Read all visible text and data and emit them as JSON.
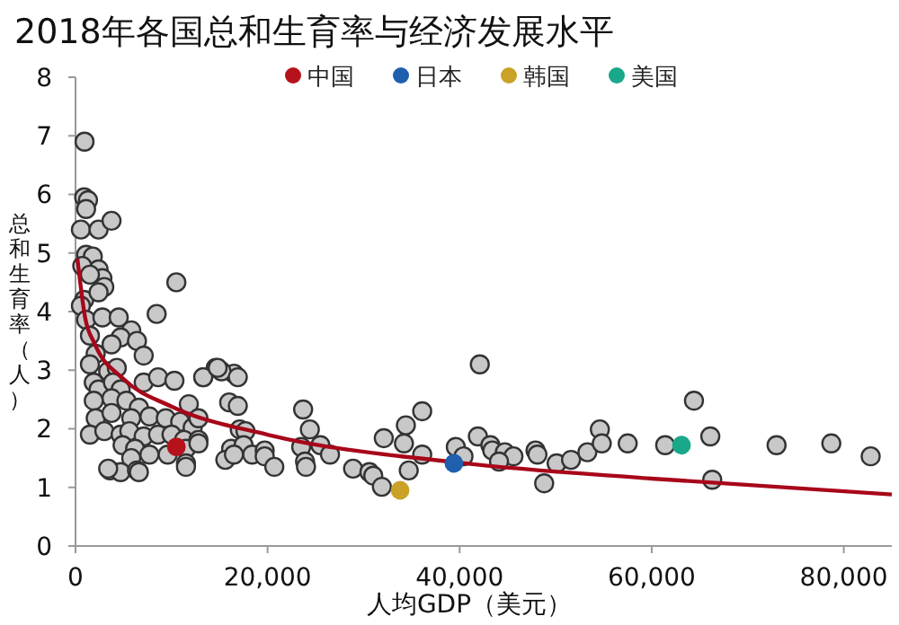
{
  "chart_data": {
    "type": "scatter",
    "title": "2018年各国总和生育率与经济发展水平",
    "xlabel": "人均GDP（美元）",
    "ylabel": "总和生育率（人）",
    "xlim": [
      0,
      85000
    ],
    "xticks": [
      {
        "value": 0,
        "label": "0"
      },
      {
        "value": 20000,
        "label": "20,000"
      },
      {
        "value": 40000,
        "label": "40,000"
      },
      {
        "value": 60000,
        "label": "60,000"
      },
      {
        "value": 80000,
        "label": "80,000"
      }
    ],
    "ylim": [
      0,
      8
    ],
    "yticks": [
      0,
      1,
      2,
      3,
      4,
      5,
      6,
      7,
      8
    ],
    "grid": false,
    "legend": "top",
    "marker": "circle",
    "series": [
      {
        "color": "#c8c8c8",
        "x": [
          940,
          900,
          1300,
          1100,
          560,
          2400,
          3750,
          1100,
          1800,
          700,
          10500,
          2400,
          2800,
          3000,
          1500,
          900,
          2400,
          560,
          8450,
          1100,
          2800,
          4500,
          5800,
          4700,
          6400,
          7100,
          3750,
          1500,
          2100,
          1500,
          3400,
          4300,
          1900,
          2400,
          3900,
          4700,
          7100,
          8600,
          10300,
          13300,
          14600,
          16500,
          1900,
          3750,
          5300,
          6600,
          2100,
          3750,
          5800,
          7700,
          9400,
          10900,
          11800,
          12200,
          1500,
          3000,
          4700,
          5600,
          7100,
          8600,
          10000,
          11300,
          12800,
          4900,
          6200,
          7700,
          5800,
          11500,
          9600,
          11500,
          3600,
          4700,
          6400,
          15200,
          3400,
          6600,
          11500,
          13300,
          14800,
          16900,
          16000,
          16900,
          12800,
          17100,
          17700,
          12800,
          16200,
          17500,
          18400,
          19700,
          15600,
          16500,
          19700,
          20700,
          23700,
          24400,
          23500,
          25500,
          26500,
          23900,
          24000,
          28900,
          30600,
          31000,
          31900,
          32100,
          34200,
          34400,
          36100,
          36100,
          34700,
          39600,
          40400,
          42100,
          41900,
          43200,
          43400,
          44700,
          45600,
          44100,
          47900,
          48100,
          48800,
          50100,
          51600,
          53300,
          54600,
          54800,
          57500,
          61400,
          64400,
          66100,
          66300,
          73000,
          78700,
          82800
        ],
        "values": [
          6.9,
          5.95,
          5.9,
          5.75,
          5.4,
          5.4,
          5.55,
          4.97,
          4.94,
          4.78,
          4.5,
          4.72,
          4.57,
          4.42,
          4.63,
          4.2,
          4.33,
          4.1,
          3.96,
          3.86,
          3.9,
          3.9,
          3.68,
          3.56,
          3.5,
          3.25,
          3.44,
          3.59,
          3.28,
          3.1,
          2.98,
          3.04,
          2.79,
          2.67,
          2.79,
          2.67,
          2.79,
          2.88,
          2.82,
          2.88,
          3.04,
          2.94,
          2.48,
          2.52,
          2.48,
          2.36,
          2.18,
          2.27,
          2.18,
          2.21,
          2.18,
          2.12,
          2.42,
          2.02,
          1.9,
          1.96,
          1.9,
          1.96,
          1.87,
          1.9,
          1.9,
          1.81,
          1.81,
          1.72,
          1.66,
          1.56,
          1.5,
          1.66,
          1.56,
          1.41,
          1.29,
          1.26,
          1.29,
          2.98,
          1.32,
          1.26,
          1.35,
          2.88,
          3.04,
          2.88,
          2.45,
          2.39,
          2.18,
          1.99,
          1.96,
          1.75,
          1.66,
          1.72,
          1.56,
          1.63,
          1.47,
          1.56,
          1.53,
          1.35,
          2.33,
          1.99,
          1.69,
          1.72,
          1.56,
          1.44,
          1.35,
          1.32,
          1.26,
          1.2,
          1.01,
          1.84,
          1.75,
          2.06,
          2.3,
          1.56,
          1.29,
          1.69,
          1.53,
          3.1,
          1.87,
          1.72,
          1.63,
          1.6,
          1.53,
          1.44,
          1.63,
          1.56,
          1.07,
          1.41,
          1.47,
          1.6,
          1.99,
          1.75,
          1.75,
          1.72,
          2.48,
          1.87,
          1.13,
          1.72,
          1.75,
          1.53
        ]
      },
      {
        "type": "line",
        "color": "#a8071a",
        "marker": "none",
        "line_style": "solid",
        "x": [
          200,
          1000,
          2000,
          5000,
          10000,
          20000,
          40000,
          60000,
          85000
        ],
        "values": [
          4.9,
          3.9,
          3.45,
          2.85,
          2.38,
          1.9,
          1.42,
          1.15,
          0.88
        ]
      },
      {
        "name": "中国",
        "color": "#b5121b",
        "x": [
          10500
        ],
        "values": [
          1.69
        ]
      },
      {
        "name": "日本",
        "color": "#1f5fae",
        "x": [
          39400
        ],
        "values": [
          1.41
        ]
      },
      {
        "name": "韩国",
        "color": "#c9a227",
        "x": [
          33800
        ],
        "values": [
          0.95
        ]
      },
      {
        "name": "美国",
        "color": "#1aa88a",
        "x": [
          63100
        ],
        "values": [
          1.72
        ]
      }
    ]
  }
}
